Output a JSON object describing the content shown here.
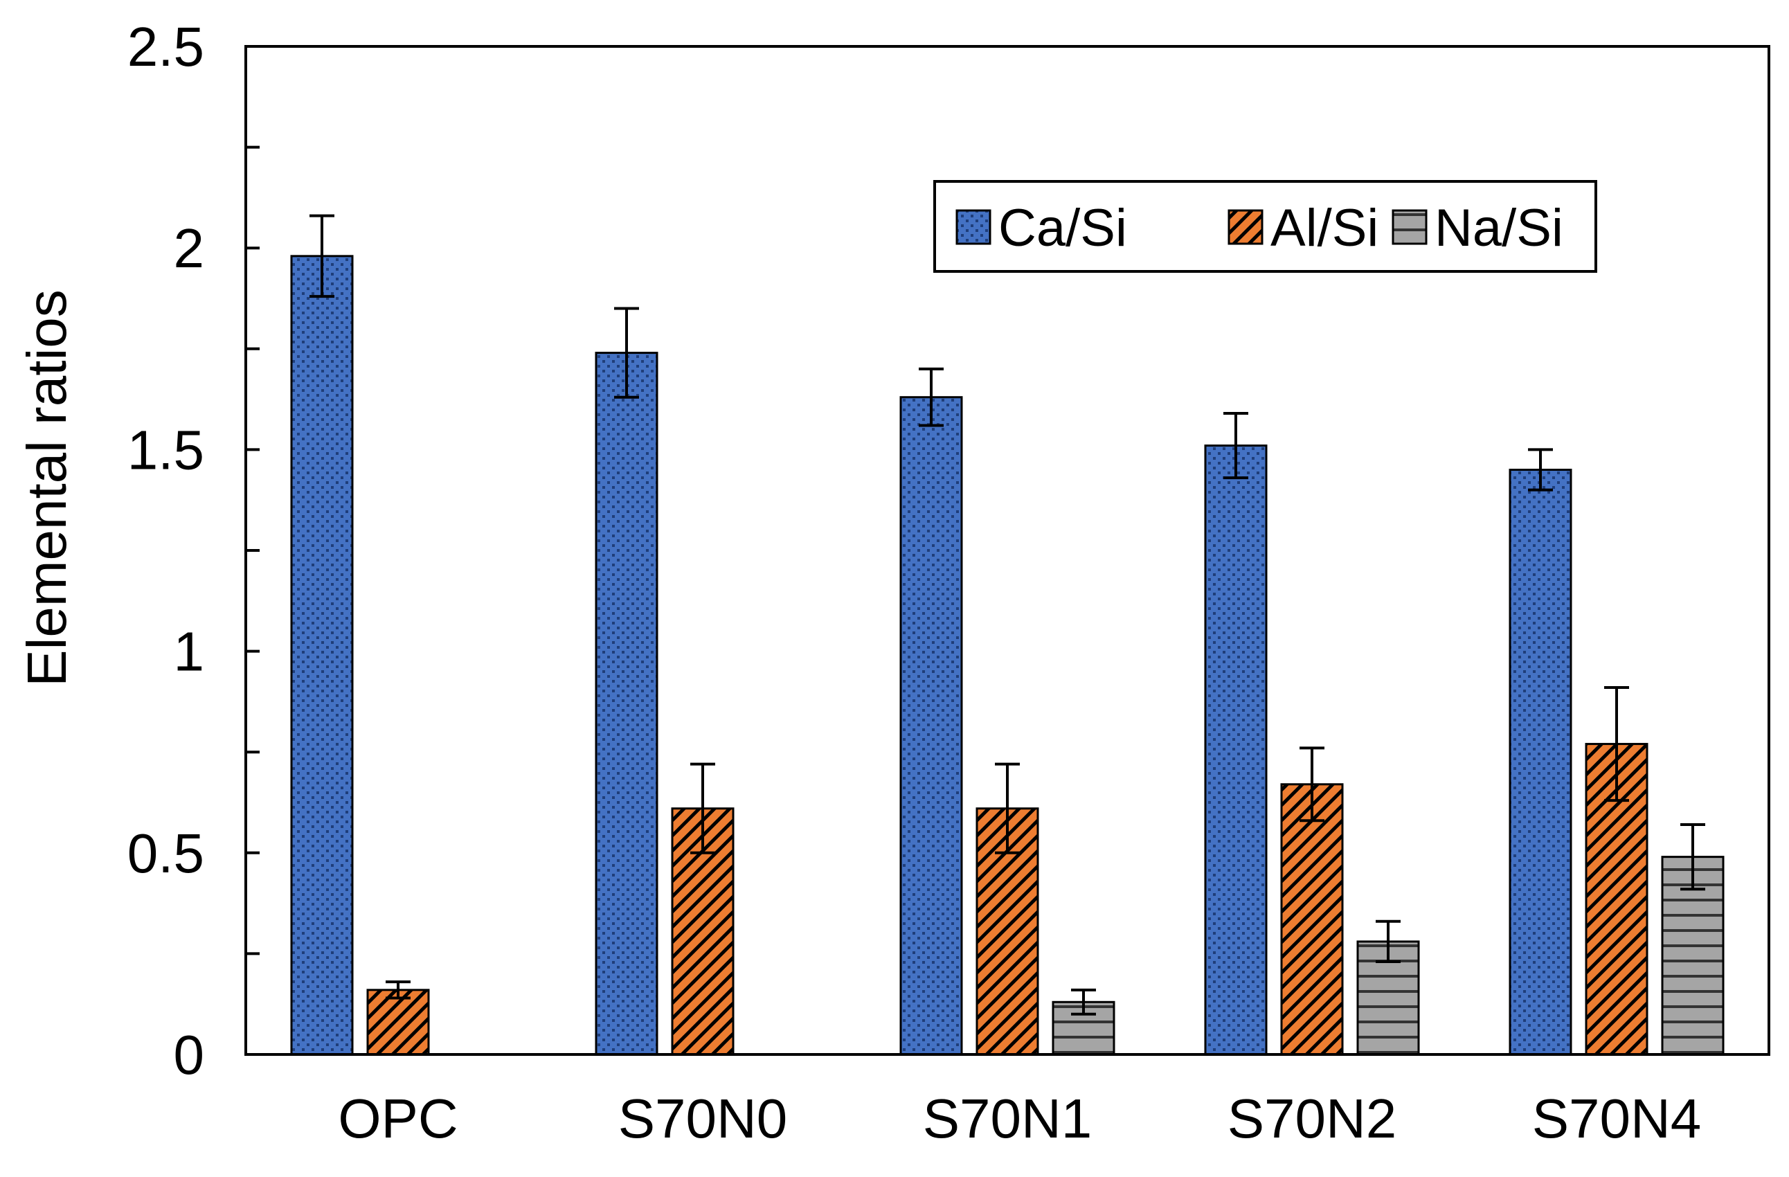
{
  "chart_data": {
    "type": "bar",
    "title": "",
    "xlabel": "",
    "ylabel": "Elemental ratios",
    "ylim": [
      0,
      2.5
    ],
    "yticks": [
      "0",
      "0.5",
      "1",
      "1.5",
      "2",
      "2.5"
    ],
    "grid": false,
    "legend_position": "top-right",
    "categories": [
      "OPC",
      "S70N0",
      "S70N1",
      "S70N2",
      "S70N4"
    ],
    "series": [
      {
        "name": "Ca/Si",
        "color": "#4472C4",
        "pattern": "dots",
        "values": [
          1.98,
          1.74,
          1.63,
          1.51,
          1.45
        ],
        "errors": [
          0.1,
          0.11,
          0.07,
          0.08,
          0.05
        ]
      },
      {
        "name": "Al/Si",
        "color": "#ED7D31",
        "pattern": "diagonal-hatch",
        "values": [
          0.16,
          0.61,
          0.61,
          0.67,
          0.77
        ],
        "errors": [
          0.02,
          0.11,
          0.11,
          0.09,
          0.14
        ]
      },
      {
        "name": "Na/Si",
        "color": "#A5A5A5",
        "pattern": "horizontal-lines",
        "values": [
          null,
          null,
          0.13,
          0.28,
          0.49
        ],
        "errors": [
          null,
          null,
          0.03,
          0.05,
          0.08
        ]
      }
    ]
  }
}
